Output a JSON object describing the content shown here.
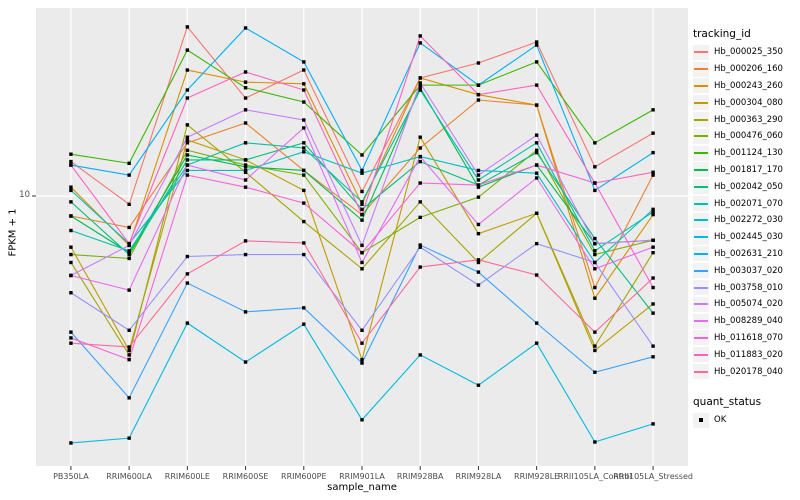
{
  "figure": {
    "background": "#FFFFFF",
    "panel_bg": "#EBEBEB",
    "gridline_color": "#FFFFFF",
    "tick_color": "#333333",
    "tick_text_color": "#4D4D4D",
    "point_color": "#000000"
  },
  "axes": {
    "x_title": "sample_name",
    "y_title": "FPKM + 1",
    "y_tick_label": "10"
  },
  "legend": {
    "tracking_title": "tracking_id",
    "quant_title": "quant_status",
    "quant_items": [
      {
        "label": "OK",
        "marker": "black-square"
      }
    ]
  },
  "chart_data": {
    "type": "line",
    "xlabel": "sample_name",
    "ylabel": "FPKM + 1",
    "y_scale": "log10",
    "y_ticks": [
      10
    ],
    "ylim_approx": [
      1,
      55
    ],
    "grid": "vertical-major-plus-y10",
    "legend_position": "right",
    "marker": "black-square",
    "quant_status": "OK",
    "categories": [
      "PB350LA",
      "RRIM600LA",
      "RRIM600LE",
      "RRIM600SE",
      "RRIM600PE",
      "RRIM901LA",
      "RRIM928BA",
      "RRIM928LA",
      "RRIM928LE",
      "RRII105LA_Control",
      "RRII105LA_Stressed"
    ],
    "series": [
      {
        "name": "Hb_000025_350",
        "color": "#F8766D",
        "values": [
          13.5,
          9.3,
          43.7,
          23.5,
          30.0,
          10.4,
          28.0,
          31.9,
          38.3,
          12.9,
          17.3
        ]
      },
      {
        "name": "Hb_000206_160",
        "color": "#EA8331",
        "values": [
          8.4,
          7.6,
          15.9,
          18.9,
          12.5,
          8.5,
          15.2,
          23.1,
          22.1,
          4.5,
          12.0
        ]
      },
      {
        "name": "Hb_000243_260",
        "color": "#D89000",
        "values": [
          10.8,
          6.5,
          30.0,
          27.0,
          26.6,
          9.3,
          28.0,
          24.2,
          22.1,
          4.1,
          8.5
        ]
      },
      {
        "name": "Hb_000304_080",
        "color": "#C09B00",
        "values": [
          6.4,
          2.6,
          16.3,
          13.7,
          10.5,
          2.4,
          16.7,
          7.2,
          8.6,
          2.6,
          3.9
        ]
      },
      {
        "name": "Hb_000363_290",
        "color": "#A3A500",
        "values": [
          5.6,
          2.5,
          18.6,
          12.3,
          8.0,
          5.3,
          9.5,
          5.6,
          8.6,
          2.7,
          6.1
        ]
      },
      {
        "name": "Hb_000476_060",
        "color": "#7CAE00",
        "values": [
          6.0,
          5.8,
          14.9,
          13.1,
          12.0,
          6.1,
          8.3,
          9.9,
          14.9,
          6.0,
          6.8
        ]
      },
      {
        "name": "Hb_001124_130",
        "color": "#39B600",
        "values": [
          14.4,
          13.3,
          35.7,
          25.7,
          22.7,
          14.3,
          26.3,
          26.3,
          32.2,
          15.9,
          21.2
        ]
      },
      {
        "name": "Hb_001817_170",
        "color": "#00BB4E",
        "values": [
          8.4,
          6.1,
          14.3,
          12.9,
          12.5,
          8.1,
          25.7,
          10.8,
          13.1,
          6.6,
          6.8
        ]
      },
      {
        "name": "Hb_002042_050",
        "color": "#00BF7D",
        "values": [
          9.5,
          6.0,
          13.7,
          13.7,
          15.9,
          8.9,
          13.5,
          11.0,
          14.6,
          6.9,
          3.6
        ]
      },
      {
        "name": "Hb_002071_070",
        "color": "#00C1A3",
        "values": [
          7.4,
          6.2,
          13.1,
          15.9,
          15.2,
          9.5,
          25.2,
          11.5,
          15.9,
          6.2,
          8.7
        ]
      },
      {
        "name": "Hb_002272_030",
        "color": "#00BFC4",
        "values": [
          10.5,
          6.6,
          12.5,
          12.5,
          14.7,
          12.2,
          14.1,
          12.5,
          12.2,
          5.6,
          8.9
        ]
      },
      {
        "name": "Hb_002445_030",
        "color": "#00BAE0",
        "values": [
          1.16,
          1.21,
          3.3,
          2.35,
          3.27,
          1.42,
          2.5,
          1.92,
          2.77,
          1.17,
          1.37
        ]
      },
      {
        "name": "Hb_002631_210",
        "color": "#00B0F6",
        "values": [
          13.1,
          12.0,
          25.2,
          43.3,
          32.2,
          12.5,
          38.0,
          26.3,
          37.3,
          10.5,
          14.6
        ]
      },
      {
        "name": "Hb_003037_020",
        "color": "#35A2FF",
        "values": [
          3.05,
          1.72,
          4.68,
          3.64,
          3.77,
          2.33,
          6.52,
          5.15,
          3.3,
          2.15,
          2.46
        ]
      },
      {
        "name": "Hb_003758_010",
        "color": "#9590FF",
        "values": [
          4.3,
          3.1,
          5.9,
          6.0,
          6.0,
          3.1,
          6.4,
          4.6,
          6.6,
          5.6,
          2.7
        ]
      },
      {
        "name": "Hb_005074_020",
        "color": "#C77CFF",
        "values": [
          5.0,
          6.5,
          16.7,
          21.2,
          19.4,
          6.5,
          26.8,
          12.0,
          17.0,
          6.6,
          6.8
        ]
      },
      {
        "name": "Hb_008289_040",
        "color": "#E76BF3",
        "values": [
          5.0,
          4.4,
          13.1,
          11.5,
          18.1,
          5.6,
          14.1,
          7.8,
          11.7,
          5.3,
          6.4
        ]
      },
      {
        "name": "Hb_011618_070",
        "color": "#FA62DB",
        "values": [
          2.9,
          2.4,
          12.0,
          10.8,
          9.4,
          6.1,
          11.2,
          11.0,
          13.1,
          11.2,
          4.5
        ]
      },
      {
        "name": "Hb_011883_020",
        "color": "#FF62BC",
        "values": [
          13.1,
          6.6,
          23.5,
          29.5,
          25.2,
          8.5,
          40.4,
          24.2,
          26.3,
          11.2,
          12.3
        ]
      },
      {
        "name": "Hb_020178_040",
        "color": "#FF6A98",
        "values": [
          2.77,
          2.68,
          5.07,
          6.76,
          6.64,
          2.77,
          5.38,
          5.73,
          5.02,
          3.05,
          4.89
        ]
      }
    ]
  }
}
